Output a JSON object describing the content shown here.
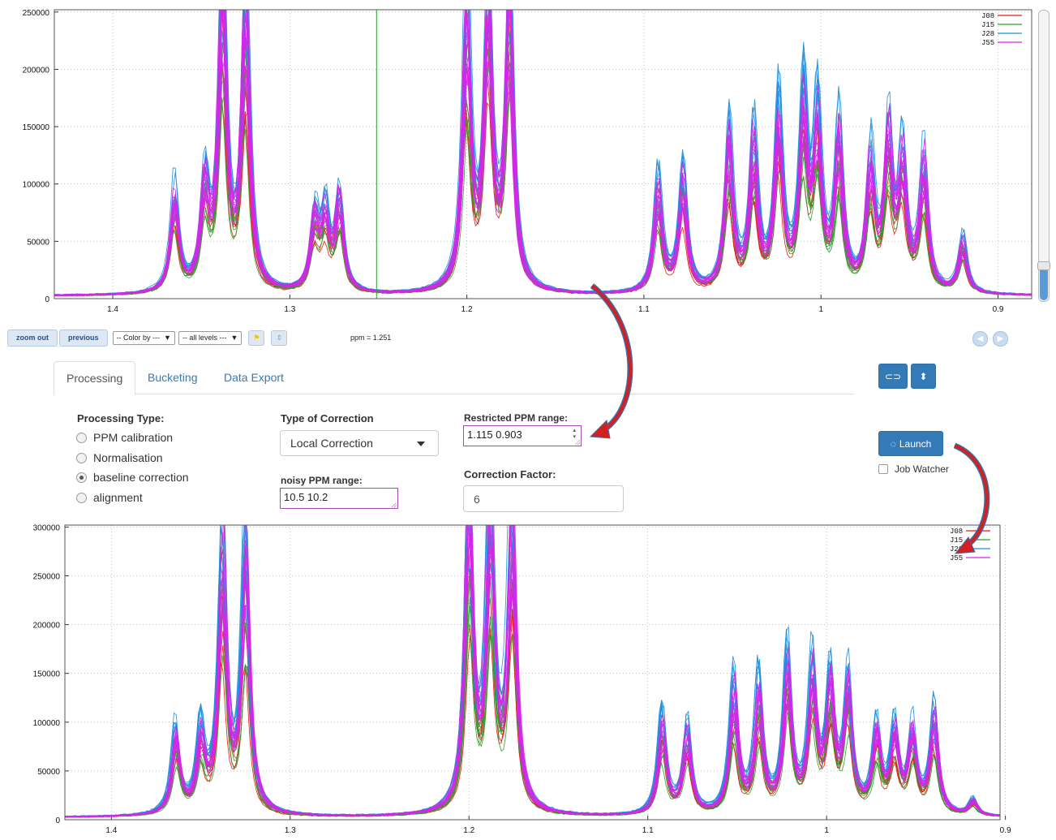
{
  "toolbar": {
    "zoom_out": "zoom out",
    "previous": "previous",
    "color_by": "-- Color by ---",
    "levels": "-- all levels ---",
    "ppm_readout": "ppm = 1.251",
    "icons": [
      "flag-icon",
      "up-down-icon",
      "prev-circle-icon",
      "next-circle-icon"
    ]
  },
  "tabs": [
    "Processing",
    "Bucketing",
    "Data Export"
  ],
  "active_tab": "Processing",
  "form": {
    "processing_type_label": "Processing Type:",
    "processing_types": [
      "PPM calibration",
      "Normalisation",
      "baseline correction",
      "alignment"
    ],
    "processing_type_selected": "baseline correction",
    "correction_type_label": "Type of Correction",
    "correction_type_value": "Local Correction",
    "noisy_range_label": "noisy PPM range:",
    "noisy_range_value": "10.5 10.2",
    "restricted_range_label": "Restricted PPM range:",
    "restricted_range_value": "1.115 0.903",
    "correction_factor_label": "Correction Factor:",
    "correction_factor_value": "6",
    "launch_label": "Launch",
    "job_watcher_label": "Job Watcher",
    "job_watcher_checked": false
  },
  "chart_data": [
    {
      "type": "line",
      "title": "",
      "xlabel": "",
      "ylabel": "",
      "x_reversed": true,
      "xlim": [
        1.433,
        0.881
      ],
      "ylim": [
        0,
        252000
      ],
      "x_ticks": [
        "1.4",
        "1.3",
        "1.2",
        "1.1",
        "1",
        "0.9"
      ],
      "y_ticks": [
        "0",
        "50000",
        "100000",
        "150000",
        "200000",
        "250000"
      ],
      "grid": true,
      "legend_position": "top-right",
      "cursor_ppm": 1.251,
      "series": [
        {
          "name": "J08",
          "color": "#e41a1c"
        },
        {
          "name": "J15",
          "color": "#2ca02c"
        },
        {
          "name": "J28",
          "color": "#1f8fe0"
        },
        {
          "name": "J55",
          "color": "#d626e8"
        }
      ],
      "peaks_ppm": [
        {
          "ppm": 1.365,
          "height": 85000
        },
        {
          "ppm": 1.348,
          "height": 85000
        },
        {
          "ppm": 1.338,
          "height": 250000
        },
        {
          "ppm": 1.325,
          "height": 250000
        },
        {
          "ppm": 1.286,
          "height": 60000
        },
        {
          "ppm": 1.28,
          "height": 60000
        },
        {
          "ppm": 1.272,
          "height": 80000
        },
        {
          "ppm": 1.2,
          "height": 250000
        },
        {
          "ppm": 1.188,
          "height": 250000
        },
        {
          "ppm": 1.176,
          "height": 250000
        },
        {
          "ppm": 1.092,
          "height": 90000
        },
        {
          "ppm": 1.078,
          "height": 100000
        },
        {
          "ppm": 1.052,
          "height": 130000
        },
        {
          "ppm": 1.038,
          "height": 125000
        },
        {
          "ppm": 1.024,
          "height": 145000
        },
        {
          "ppm": 1.01,
          "height": 150000
        },
        {
          "ppm": 1.002,
          "height": 140000
        },
        {
          "ppm": 0.99,
          "height": 130000
        },
        {
          "ppm": 0.972,
          "height": 105000
        },
        {
          "ppm": 0.962,
          "height": 125000
        },
        {
          "ppm": 0.954,
          "height": 105000
        },
        {
          "ppm": 0.942,
          "height": 110000
        },
        {
          "ppm": 0.92,
          "height": 45000
        }
      ]
    },
    {
      "type": "line",
      "title": "",
      "xlabel": "",
      "ylabel": "",
      "x_reversed": true,
      "xlim": [
        1.426,
        0.903
      ],
      "ylim": [
        0,
        302000
      ],
      "x_ticks": [
        "1.4",
        "1.3",
        "1.2",
        "1.1",
        "1",
        "0.9"
      ],
      "y_ticks": [
        "0",
        "50000",
        "100000",
        "150000",
        "200000",
        "250000",
        "300000"
      ],
      "grid": true,
      "legend_position": "top-right",
      "series": [
        {
          "name": "J08",
          "color": "#e41a1c"
        },
        {
          "name": "J15",
          "color": "#2ca02c"
        },
        {
          "name": "J28",
          "color": "#1f8fe0"
        },
        {
          "name": "J55",
          "color": "#d626e8"
        }
      ],
      "peaks_ppm": [
        {
          "ppm": 1.364,
          "height": 80000
        },
        {
          "ppm": 1.35,
          "height": 75000
        },
        {
          "ppm": 1.338,
          "height": 275000
        },
        {
          "ppm": 1.325,
          "height": 265000
        },
        {
          "ppm": 1.2,
          "height": 300000
        },
        {
          "ppm": 1.188,
          "height": 300000
        },
        {
          "ppm": 1.176,
          "height": 300000
        },
        {
          "ppm": 1.092,
          "height": 90000
        },
        {
          "ppm": 1.078,
          "height": 80000
        },
        {
          "ppm": 1.052,
          "height": 125000
        },
        {
          "ppm": 1.038,
          "height": 118000
        },
        {
          "ppm": 1.022,
          "height": 145000
        },
        {
          "ppm": 1.008,
          "height": 135000
        },
        {
          "ppm": 0.998,
          "height": 122000
        },
        {
          "ppm": 0.988,
          "height": 125000
        },
        {
          "ppm": 0.972,
          "height": 80000
        },
        {
          "ppm": 0.962,
          "height": 80000
        },
        {
          "ppm": 0.952,
          "height": 82000
        },
        {
          "ppm": 0.94,
          "height": 95000
        },
        {
          "ppm": 0.918,
          "height": 15000
        }
      ]
    }
  ]
}
